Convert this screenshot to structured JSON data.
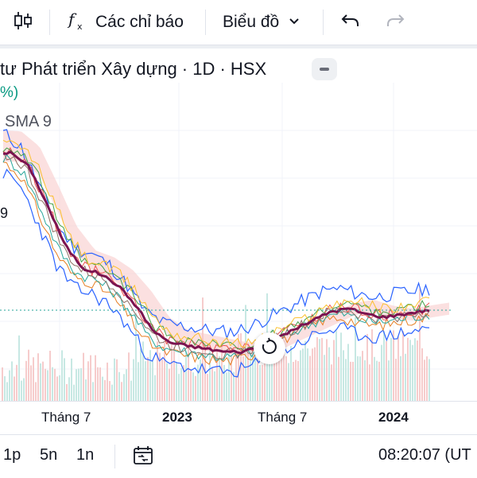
{
  "toolbar": {
    "candles_icon": "candlestick-icon",
    "indicators_icon": "fx-icon",
    "indicators_label": "Các chỉ báo",
    "chart_type_label": "Biểu đồ",
    "undo_icon": "undo-icon",
    "redo_icon": "redo-icon"
  },
  "legend": {
    "title": "tư Phát triển Xây dựng · 1D · HSX",
    "pct_fragment": "%)",
    "sma_label": "SMA 9",
    "fragment_9": "9"
  },
  "time_axis": {
    "ticks": [
      {
        "label": "Tháng 7",
        "bold": false
      },
      {
        "label": "2023",
        "bold": true
      },
      {
        "label": "Tháng 7",
        "bold": false
      },
      {
        "label": "2024",
        "bold": true
      }
    ]
  },
  "bottom": {
    "intervals": [
      "1p",
      "5n",
      "1n"
    ],
    "clock": "08:20:07 (UT"
  },
  "colors": {
    "up": "#26a69a",
    "down": "#ef5350",
    "sma_main": "#7b1450",
    "band": "#2962ff",
    "cloud_red": "#f7c6c6",
    "cloud_green": "#c8e6c9"
  },
  "chart_data": {
    "type": "line",
    "x": [
      "2022-03",
      "2022-04",
      "2022-05",
      "2022-06",
      "2022-07",
      "2022-08",
      "2022-09",
      "2022-10",
      "2022-11",
      "2022-12",
      "2023-01",
      "2023-02",
      "2023-03",
      "2023-04",
      "2023-05",
      "2023-06",
      "2023-07",
      "2023-08",
      "2023-09",
      "2023-10",
      "2023-11",
      "2023-12",
      "2024-01",
      "2024-02",
      "2024-03"
    ],
    "series": [
      {
        "values": [
          100,
          95,
          82,
          68,
          60,
          58,
          54,
          47,
          38,
          34,
          33,
          32,
          31,
          31,
          33,
          36,
          39,
          42,
          45,
          46,
          44,
          43,
          44,
          45,
          46
        ]
      }
    ],
    "tick_labels": [
      "Tháng 7",
      "2023",
      "Tháng 7",
      "2024"
    ]
  }
}
